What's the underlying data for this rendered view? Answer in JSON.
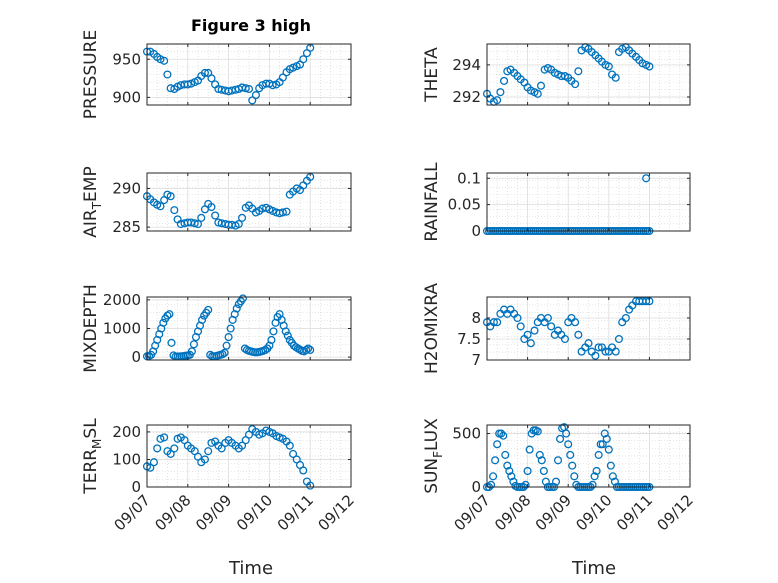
{
  "figure": {
    "title": "Figure 3 high",
    "xlabel": "Time",
    "x_ticklabels": [
      "09/07",
      "09/08",
      "09/09",
      "09/10",
      "09/11",
      "09/12"
    ],
    "marker_color": "#0072BD"
  },
  "chart_data": [
    {
      "type": "scatter",
      "id": "pressure",
      "ylabel": "PRESSURE",
      "ylabel_sub": null,
      "xlim": [
        0,
        5
      ],
      "ylim": [
        890,
        970
      ],
      "yticks": [
        900,
        950
      ],
      "yticklabels": [
        "900",
        "950"
      ],
      "grid": true,
      "x": [
        0.0,
        0.08,
        0.17,
        0.25,
        0.33,
        0.42,
        0.5,
        0.58,
        0.67,
        0.75,
        0.83,
        0.92,
        1.0,
        1.08,
        1.17,
        1.25,
        1.33,
        1.42,
        1.5,
        1.58,
        1.67,
        1.75,
        1.83,
        1.92,
        2.0,
        2.08,
        2.17,
        2.25,
        2.33,
        2.42,
        2.5,
        2.58,
        2.67,
        2.75,
        2.83,
        2.92,
        3.0,
        3.08,
        3.17,
        3.25,
        3.33,
        3.42,
        3.5,
        3.58,
        3.67,
        3.75,
        3.83,
        3.92,
        4.0
      ],
      "y": [
        960,
        960,
        957,
        953,
        950,
        948,
        930,
        912,
        911,
        914,
        916,
        917,
        917,
        918,
        920,
        922,
        928,
        932,
        932,
        925,
        917,
        911,
        910,
        909,
        908,
        909,
        910,
        911,
        913,
        912,
        911,
        896,
        903,
        912,
        916,
        918,
        918,
        916,
        917,
        920,
        926,
        933,
        937,
        939,
        941,
        943,
        950,
        958,
        965
      ]
    },
    {
      "type": "scatter",
      "id": "theta",
      "ylabel": "THETA",
      "ylabel_sub": null,
      "xlim": [
        0,
        5
      ],
      "ylim": [
        291.5,
        295.3
      ],
      "yticks": [
        292,
        294
      ],
      "yticklabels": [
        "292",
        "294"
      ],
      "grid": true,
      "x": [
        0.0,
        0.08,
        0.17,
        0.25,
        0.33,
        0.42,
        0.5,
        0.58,
        0.67,
        0.75,
        0.83,
        0.92,
        1.0,
        1.08,
        1.17,
        1.25,
        1.33,
        1.42,
        1.5,
        1.58,
        1.67,
        1.75,
        1.83,
        1.92,
        2.0,
        2.08,
        2.17,
        2.25,
        2.33,
        2.42,
        2.5,
        2.58,
        2.67,
        2.75,
        2.83,
        2.92,
        3.0,
        3.08,
        3.17,
        3.25,
        3.33,
        3.42,
        3.5,
        3.58,
        3.67,
        3.75,
        3.83,
        3.92,
        4.0
      ],
      "y": [
        292.2,
        291.9,
        291.7,
        291.8,
        292.3,
        293.0,
        293.6,
        293.7,
        293.5,
        293.3,
        293.1,
        292.9,
        292.6,
        292.4,
        292.3,
        292.2,
        292.7,
        293.7,
        293.8,
        293.7,
        293.5,
        293.4,
        293.3,
        293.3,
        293.2,
        293.0,
        292.8,
        293.6,
        294.9,
        295.1,
        295.0,
        294.8,
        294.6,
        294.4,
        294.2,
        294.0,
        293.9,
        293.4,
        293.2,
        294.8,
        295.0,
        295.1,
        294.9,
        294.7,
        294.5,
        294.3,
        294.1,
        294.0,
        293.9
      ]
    },
    {
      "type": "scatter",
      "id": "air_temp",
      "ylabel": "AIR",
      "ylabel_sub": "T",
      "ylabel_suffix": "EMP",
      "xlim": [
        0,
        5
      ],
      "ylim": [
        284.5,
        292
      ],
      "yticks": [
        285,
        290
      ],
      "yticklabels": [
        "285",
        "290"
      ],
      "grid": true,
      "x": [
        0.0,
        0.08,
        0.17,
        0.25,
        0.33,
        0.42,
        0.5,
        0.58,
        0.67,
        0.75,
        0.83,
        0.92,
        1.0,
        1.08,
        1.17,
        1.25,
        1.33,
        1.42,
        1.5,
        1.58,
        1.67,
        1.75,
        1.83,
        1.92,
        2.0,
        2.08,
        2.17,
        2.25,
        2.33,
        2.42,
        2.5,
        2.58,
        2.67,
        2.75,
        2.83,
        2.92,
        3.0,
        3.08,
        3.17,
        3.25,
        3.33,
        3.42,
        3.5,
        3.58,
        3.67,
        3.75,
        3.83,
        3.92,
        4.0
      ],
      "y": [
        289.0,
        288.6,
        288.2,
        287.9,
        287.7,
        288.5,
        289.2,
        289.0,
        287.2,
        286.0,
        285.4,
        285.5,
        285.6,
        285.6,
        285.5,
        285.4,
        286.2,
        287.3,
        288.0,
        287.6,
        286.5,
        285.6,
        285.5,
        285.4,
        285.3,
        285.3,
        285.2,
        285.4,
        286.2,
        287.5,
        287.8,
        287.4,
        286.9,
        287.1,
        287.4,
        287.5,
        287.3,
        287.1,
        286.9,
        286.8,
        286.9,
        287.0,
        289.2,
        289.6,
        290.0,
        289.8,
        290.4,
        291.0,
        291.5
      ]
    },
    {
      "type": "scatter",
      "id": "rainfall",
      "ylabel": "RAINFALL",
      "ylabel_sub": null,
      "xlim": [
        0,
        5
      ],
      "ylim": [
        0,
        0.11
      ],
      "yticks": [
        0,
        0.05,
        0.1
      ],
      "yticklabels": [
        "0",
        "0.05",
        "0.1"
      ],
      "grid": true,
      "x": [
        0.0,
        0.05,
        0.1,
        0.15,
        0.2,
        0.25,
        0.3,
        0.35,
        0.4,
        0.45,
        0.5,
        0.55,
        0.6,
        0.65,
        0.7,
        0.75,
        0.8,
        0.85,
        0.9,
        0.95,
        1.0,
        1.05,
        1.1,
        1.15,
        1.2,
        1.25,
        1.3,
        1.35,
        1.4,
        1.45,
        1.5,
        1.55,
        1.6,
        1.65,
        1.7,
        1.75,
        1.8,
        1.85,
        1.9,
        1.95,
        2.0,
        2.05,
        2.1,
        2.15,
        2.2,
        2.25,
        2.3,
        2.35,
        2.4,
        2.45,
        2.5,
        2.55,
        2.6,
        2.65,
        2.7,
        2.75,
        2.8,
        2.85,
        2.9,
        2.95,
        3.0,
        3.05,
        3.1,
        3.15,
        3.2,
        3.25,
        3.3,
        3.35,
        3.4,
        3.45,
        3.5,
        3.55,
        3.6,
        3.65,
        3.7,
        3.75,
        3.8,
        3.85,
        3.9,
        3.95,
        4.0,
        3.92
      ],
      "y": [
        0,
        0,
        0,
        0,
        0,
        0,
        0,
        0,
        0,
        0,
        0,
        0,
        0,
        0,
        0,
        0,
        0,
        0,
        0,
        0,
        0,
        0,
        0,
        0,
        0,
        0,
        0,
        0,
        0,
        0,
        0,
        0,
        0,
        0,
        0,
        0,
        0,
        0,
        0,
        0,
        0,
        0,
        0,
        0,
        0,
        0,
        0,
        0,
        0,
        0,
        0,
        0,
        0,
        0,
        0,
        0,
        0,
        0,
        0,
        0,
        0,
        0,
        0,
        0,
        0,
        0,
        0,
        0,
        0,
        0,
        0,
        0,
        0,
        0,
        0,
        0,
        0,
        0,
        0,
        0,
        0,
        0.1
      ]
    },
    {
      "type": "scatter",
      "id": "mixdepth",
      "ylabel": "MIXDEPTH",
      "ylabel_sub": null,
      "xlim": [
        0,
        5
      ],
      "ylim": [
        -100,
        2100
      ],
      "yticks": [
        0,
        1000,
        2000
      ],
      "yticklabels": [
        "0",
        "1000",
        "2000"
      ],
      "grid": true,
      "x": [
        0.0,
        0.05,
        0.1,
        0.15,
        0.2,
        0.25,
        0.3,
        0.35,
        0.4,
        0.45,
        0.5,
        0.55,
        0.6,
        0.65,
        0.7,
        0.75,
        0.8,
        0.85,
        0.9,
        0.95,
        1.0,
        1.05,
        1.1,
        1.15,
        1.2,
        1.25,
        1.3,
        1.35,
        1.4,
        1.45,
        1.5,
        1.55,
        1.6,
        1.65,
        1.7,
        1.75,
        1.8,
        1.85,
        1.9,
        1.95,
        2.0,
        2.05,
        2.1,
        2.15,
        2.2,
        2.25,
        2.3,
        2.35,
        2.4,
        2.45,
        2.5,
        2.55,
        2.6,
        2.65,
        2.7,
        2.75,
        2.8,
        2.85,
        2.9,
        2.95,
        3.0,
        3.05,
        3.1,
        3.15,
        3.2,
        3.25,
        3.3,
        3.35,
        3.4,
        3.45,
        3.5,
        3.55,
        3.6,
        3.65,
        3.7,
        3.75,
        3.8,
        3.85,
        3.9,
        3.95,
        4.0
      ],
      "y": [
        30,
        40,
        80,
        200,
        400,
        600,
        800,
        1000,
        1200,
        1350,
        1450,
        1500,
        500,
        60,
        20,
        20,
        25,
        30,
        40,
        50,
        60,
        80,
        200,
        450,
        700,
        900,
        1100,
        1300,
        1450,
        1550,
        1650,
        80,
        30,
        30,
        40,
        60,
        80,
        100,
        150,
        400,
        700,
        1000,
        1300,
        1500,
        1700,
        1850,
        1950,
        2050,
        300,
        250,
        220,
        200,
        180,
        170,
        170,
        180,
        200,
        220,
        250,
        300,
        400,
        600,
        900,
        1200,
        1400,
        1500,
        1300,
        1100,
        900,
        750,
        600,
        500,
        400,
        350,
        300,
        260,
        220,
        200,
        250,
        300,
        250
      ]
    },
    {
      "type": "scatter",
      "id": "h2omixra",
      "ylabel": "H2OMIXRA",
      "ylabel_sub": null,
      "xlim": [
        0,
        5
      ],
      "ylim": [
        7,
        8.5
      ],
      "yticks": [
        7,
        7.5,
        8
      ],
      "yticklabels": [
        "7",
        "7.5",
        "8"
      ],
      "grid": true,
      "x": [
        0.0,
        0.08,
        0.17,
        0.25,
        0.33,
        0.42,
        0.5,
        0.58,
        0.67,
        0.75,
        0.83,
        0.92,
        1.0,
        1.08,
        1.17,
        1.25,
        1.33,
        1.42,
        1.5,
        1.58,
        1.67,
        1.75,
        1.83,
        1.92,
        2.0,
        2.08,
        2.17,
        2.25,
        2.33,
        2.42,
        2.5,
        2.58,
        2.67,
        2.75,
        2.83,
        2.92,
        3.0,
        3.08,
        3.17,
        3.25,
        3.33,
        3.42,
        3.5,
        3.58,
        3.67,
        3.75,
        3.83,
        3.92,
        4.0
      ],
      "y": [
        7.9,
        7.8,
        7.9,
        7.9,
        8.1,
        8.2,
        8.1,
        8.2,
        8.1,
        8.0,
        7.8,
        7.5,
        7.6,
        7.4,
        7.7,
        7.9,
        8.0,
        7.9,
        8.0,
        7.8,
        7.6,
        7.7,
        7.6,
        7.5,
        7.9,
        8.0,
        7.9,
        7.6,
        7.2,
        7.3,
        7.4,
        7.2,
        7.1,
        7.3,
        7.3,
        7.2,
        7.2,
        7.3,
        7.2,
        7.5,
        7.9,
        8.0,
        8.2,
        8.3,
        8.4,
        8.4,
        8.4,
        8.4,
        8.4
      ]
    },
    {
      "type": "scatter",
      "id": "terr_msl",
      "ylabel": "TERR",
      "ylabel_sub": "M",
      "ylabel_suffix": "SL",
      "xlim": [
        0,
        5
      ],
      "ylim": [
        0,
        225
      ],
      "yticks": [
        0,
        100,
        200
      ],
      "yticklabels": [
        "0",
        "100",
        "200"
      ],
      "grid": true,
      "x": [
        0.0,
        0.08,
        0.17,
        0.25,
        0.33,
        0.42,
        0.5,
        0.58,
        0.67,
        0.75,
        0.83,
        0.92,
        1.0,
        1.08,
        1.17,
        1.25,
        1.33,
        1.42,
        1.5,
        1.58,
        1.67,
        1.75,
        1.83,
        1.92,
        2.0,
        2.08,
        2.17,
        2.25,
        2.33,
        2.42,
        2.5,
        2.58,
        2.67,
        2.75,
        2.83,
        2.92,
        3.0,
        3.08,
        3.17,
        3.25,
        3.33,
        3.42,
        3.5,
        3.58,
        3.67,
        3.75,
        3.83,
        3.92,
        4.0
      ],
      "y": [
        75,
        70,
        90,
        140,
        175,
        180,
        130,
        120,
        140,
        175,
        180,
        170,
        150,
        140,
        130,
        110,
        90,
        100,
        130,
        160,
        165,
        150,
        140,
        160,
        170,
        160,
        150,
        140,
        150,
        170,
        190,
        210,
        200,
        190,
        195,
        205,
        200,
        195,
        185,
        180,
        175,
        165,
        150,
        120,
        100,
        80,
        60,
        20,
        5
      ]
    },
    {
      "type": "scatter",
      "id": "sun_flux",
      "ylabel": "SUN",
      "ylabel_sub": "F",
      "ylabel_suffix": "LUX",
      "xlim": [
        0,
        5
      ],
      "ylim": [
        0,
        580
      ],
      "yticks": [
        0,
        500
      ],
      "yticklabels": [
        "0",
        "500"
      ],
      "grid": true,
      "x": [
        0.0,
        0.05,
        0.1,
        0.15,
        0.2,
        0.25,
        0.3,
        0.35,
        0.4,
        0.45,
        0.5,
        0.55,
        0.6,
        0.65,
        0.7,
        0.75,
        0.8,
        0.85,
        0.9,
        0.95,
        1.0,
        1.05,
        1.1,
        1.15,
        1.2,
        1.25,
        1.3,
        1.35,
        1.4,
        1.45,
        1.5,
        1.55,
        1.6,
        1.65,
        1.7,
        1.75,
        1.8,
        1.85,
        1.9,
        1.95,
        2.0,
        2.05,
        2.1,
        2.15,
        2.2,
        2.25,
        2.3,
        2.35,
        2.4,
        2.45,
        2.5,
        2.55,
        2.6,
        2.65,
        2.7,
        2.75,
        2.8,
        2.85,
        2.9,
        2.95,
        3.0,
        3.05,
        3.1,
        3.15,
        3.2,
        3.25,
        3.3,
        3.35,
        3.4,
        3.45,
        3.5,
        3.55,
        3.6,
        3.65,
        3.7,
        3.75,
        3.8,
        3.85,
        3.9,
        3.95,
        4.0
      ],
      "y": [
        0,
        0,
        20,
        100,
        250,
        400,
        500,
        500,
        480,
        300,
        200,
        150,
        100,
        50,
        10,
        0,
        0,
        0,
        0,
        20,
        150,
        350,
        500,
        530,
        530,
        520,
        300,
        250,
        150,
        50,
        0,
        0,
        0,
        0,
        50,
        250,
        450,
        550,
        560,
        500,
        400,
        300,
        200,
        100,
        20,
        0,
        0,
        0,
        0,
        0,
        0,
        0,
        20,
        100,
        150,
        300,
        400,
        400,
        500,
        450,
        350,
        200,
        100,
        50,
        0,
        0,
        0,
        0,
        0,
        0,
        0,
        0,
        0,
        0,
        0,
        0,
        0,
        0,
        0,
        0,
        0
      ]
    }
  ]
}
